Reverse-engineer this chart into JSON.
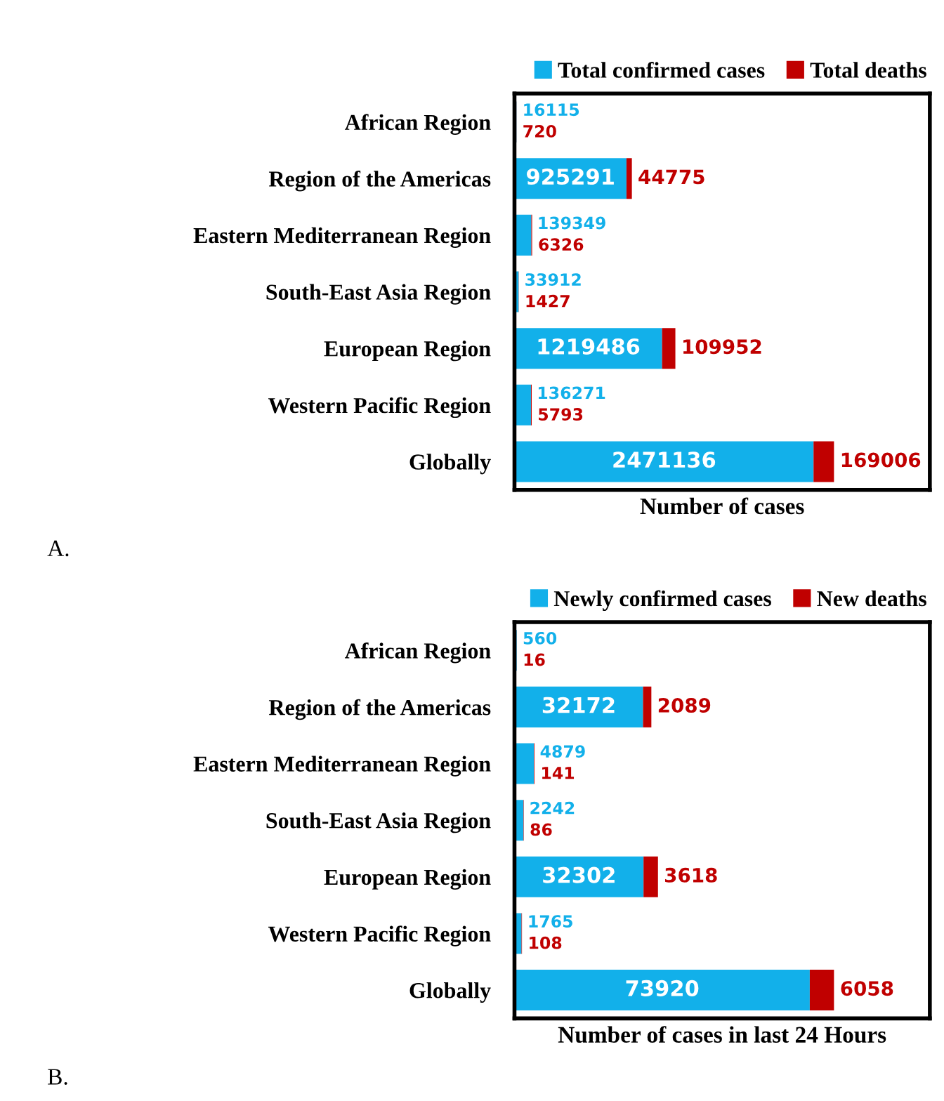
{
  "chart_data": [
    {
      "type": "bar",
      "orientation": "horizontal",
      "stacked": true,
      "data_labels": true,
      "legend": "top right",
      "grid": false,
      "tick_labels": "y",
      "xlabel": "Number of cases",
      "annotations": [
        "A."
      ],
      "categories": [
        "African Region",
        "Region of the Americas",
        "Eastern Mediterranean Region",
        "South-East Asia Region",
        "European Region",
        "Western Pacific Region",
        "Globally"
      ],
      "series": [
        {
          "name": "Total confirmed cases",
          "color": "#12b0ea",
          "values": [
            16115,
            925291,
            139349,
            33912,
            1219486,
            136271,
            2471136
          ]
        },
        {
          "name": "Total deaths",
          "color": "#c00000",
          "values": [
            720,
            44775,
            6326,
            1427,
            109952,
            5793,
            169006
          ]
        }
      ]
    },
    {
      "type": "bar",
      "orientation": "horizontal",
      "stacked": true,
      "data_labels": true,
      "legend": "top right",
      "grid": false,
      "tick_labels": "y",
      "xlabel": "Number of cases in last 24 Hours",
      "annotations": [
        "B."
      ],
      "categories": [
        "African Region",
        "Region of the Americas",
        "Eastern Mediterranean Region",
        "South-East Asia Region",
        "European Region",
        "Western Pacific Region",
        "Globally"
      ],
      "series": [
        {
          "name": "Newly confirmed cases",
          "color": "#12b0ea",
          "values": [
            560,
            32172,
            4879,
            2242,
            32302,
            1765,
            73920
          ]
        },
        {
          "name": "New deaths",
          "color": "#c00000",
          "values": [
            16,
            2089,
            141,
            86,
            3618,
            108,
            6058
          ]
        }
      ]
    }
  ]
}
